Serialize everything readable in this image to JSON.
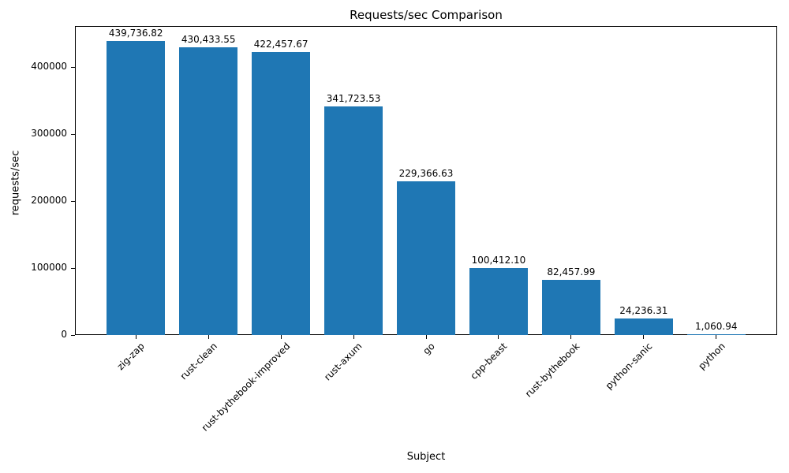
{
  "chart_data": {
    "type": "bar",
    "title": "Requests/sec Comparison",
    "xlabel": "Subject",
    "ylabel": "requests/sec",
    "categories": [
      "zig-zap",
      "rust-clean",
      "rust-bythebook-improved",
      "rust-axum",
      "go",
      "cpp-beast",
      "rust-bythebook",
      "python-sanic",
      "python"
    ],
    "values": [
      439736.82,
      430433.55,
      422457.67,
      341723.53,
      229366.63,
      100412.1,
      82457.99,
      24236.31,
      1060.94
    ],
    "value_labels": [
      "439,736.82",
      "430,433.55",
      "422,457.67",
      "341,723.53",
      "229,366.63",
      "100,412.10",
      "82,457.99",
      "24,236.31",
      "1,060.94"
    ],
    "ylim": [
      0,
      461724
    ],
    "yticks": [
      0,
      100000,
      200000,
      300000,
      400000
    ],
    "ytick_labels": [
      "0",
      "100000",
      "200000",
      "300000",
      "400000"
    ],
    "bar_color": "#1f77b4",
    "grid": false,
    "legend": null
  }
}
